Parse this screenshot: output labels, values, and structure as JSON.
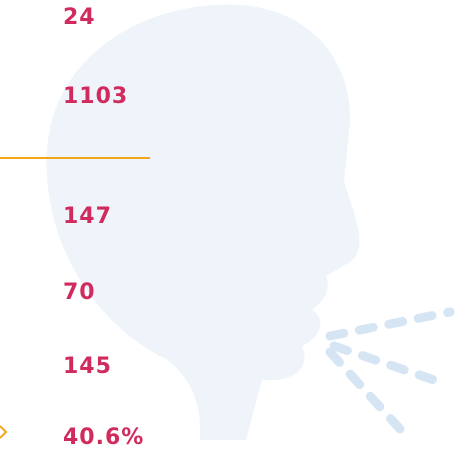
{
  "stats": [
    "24",
    "1103",
    "147",
    "70",
    "145",
    "40.6%"
  ]
}
